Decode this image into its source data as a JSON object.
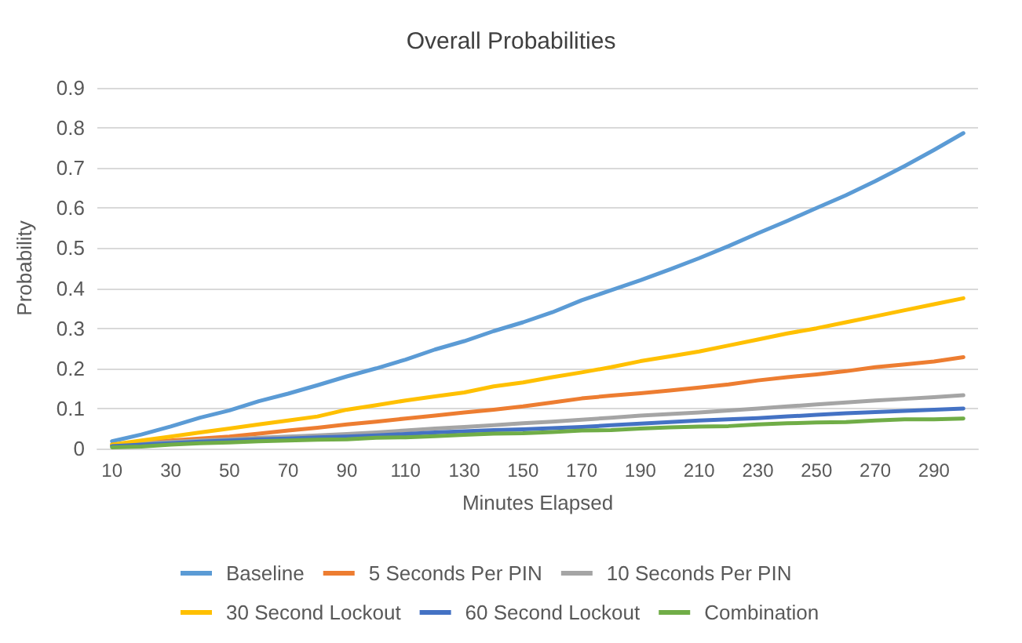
{
  "chart_data": {
    "type": "line",
    "title": "Overall Probabilities",
    "xlabel": "Minutes Elapsed",
    "ylabel": "Probability",
    "categories": [
      "10",
      null,
      "30",
      null,
      "50",
      null,
      "70",
      null,
      "90",
      null,
      "110",
      null,
      "130",
      null,
      "150",
      null,
      "170",
      null,
      "190",
      null,
      "210",
      null,
      "230",
      null,
      "250",
      null,
      "270",
      null,
      "290",
      null
    ],
    "series": [
      {
        "name": "Baseline",
        "color": "#5b9bd5",
        "values": [
          0.018,
          0.035,
          0.055,
          0.077,
          0.095,
          0.118,
          0.137,
          0.158,
          0.18,
          0.2,
          0.222,
          0.247,
          0.268,
          0.293,
          0.315,
          0.34,
          0.37,
          0.395,
          0.42,
          0.447,
          0.475,
          0.505,
          0.537,
          0.568,
          0.6,
          0.632,
          0.667,
          0.705,
          0.745,
          0.787
        ]
      },
      {
        "name": "5 Seconds Per PIN",
        "color": "#ed7d31",
        "values": [
          0.01,
          0.015,
          0.02,
          0.025,
          0.03,
          0.037,
          0.045,
          0.052,
          0.06,
          0.067,
          0.075,
          0.082,
          0.09,
          0.097,
          0.105,
          0.115,
          0.125,
          0.132,
          0.138,
          0.145,
          0.152,
          0.16,
          0.17,
          0.178,
          0.185,
          0.193,
          0.203,
          0.21,
          0.217,
          0.228
        ]
      },
      {
        "name": "10 Seconds Per PIN",
        "color": "#a5a5a5",
        "values": [
          0.008,
          0.012,
          0.016,
          0.02,
          0.023,
          0.027,
          0.03,
          0.033,
          0.036,
          0.04,
          0.045,
          0.05,
          0.054,
          0.058,
          0.063,
          0.067,
          0.072,
          0.077,
          0.082,
          0.086,
          0.09,
          0.095,
          0.1,
          0.105,
          0.11,
          0.115,
          0.12,
          0.124,
          0.128,
          0.133
        ]
      },
      {
        "name": "30 Second Lockout",
        "color": "#ffc000",
        "values": [
          0.01,
          0.02,
          0.03,
          0.04,
          0.05,
          0.06,
          0.07,
          0.08,
          0.097,
          0.108,
          0.12,
          0.13,
          0.14,
          0.155,
          0.165,
          0.178,
          0.19,
          0.203,
          0.218,
          0.23,
          0.242,
          0.257,
          0.272,
          0.287,
          0.3,
          0.315,
          0.33,
          0.345,
          0.36,
          0.375
        ]
      },
      {
        "name": "60 Second Lockout",
        "color": "#4472c4",
        "values": [
          0.006,
          0.01,
          0.013,
          0.017,
          0.02,
          0.023,
          0.025,
          0.028,
          0.03,
          0.033,
          0.036,
          0.04,
          0.043,
          0.046,
          0.048,
          0.051,
          0.054,
          0.058,
          0.062,
          0.066,
          0.07,
          0.073,
          0.076,
          0.08,
          0.084,
          0.088,
          0.091,
          0.094,
          0.097,
          0.1
        ]
      },
      {
        "name": "Combination",
        "color": "#70ad47",
        "values": [
          0.003,
          0.005,
          0.01,
          0.013,
          0.015,
          0.018,
          0.02,
          0.022,
          0.023,
          0.027,
          0.028,
          0.031,
          0.034,
          0.037,
          0.038,
          0.041,
          0.045,
          0.046,
          0.05,
          0.053,
          0.055,
          0.056,
          0.06,
          0.063,
          0.065,
          0.066,
          0.07,
          0.073,
          0.073,
          0.075
        ]
      }
    ],
    "ylim": [
      0,
      0.9
    ],
    "yticks": [
      0,
      0.1,
      0.2,
      0.3,
      0.4,
      0.5,
      0.6,
      0.7,
      0.8,
      0.9
    ],
    "grid": "y",
    "legend": "bottom",
    "marker": "none",
    "line_style": "solid"
  }
}
